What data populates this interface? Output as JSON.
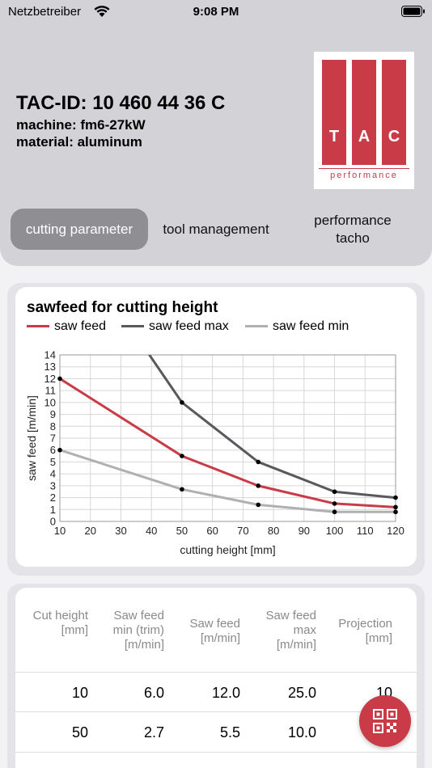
{
  "status_bar": {
    "carrier": "Netzbetreiber",
    "time": "9:08 PM"
  },
  "header": {
    "tac_id": "TAC-ID: 10 460 44 36 C",
    "machine": "machine: fm6-27kW",
    "material": "material: aluminum",
    "logo": {
      "letters": [
        "T",
        "A",
        "C"
      ],
      "tagline": "performance"
    }
  },
  "tabs": [
    {
      "label": "cutting parameter",
      "active": true
    },
    {
      "label": "tool management",
      "active": false
    },
    {
      "label": "performance tacho",
      "active": false
    }
  ],
  "colors": {
    "brand_red": "#c93b46",
    "max_gray": "#58585d",
    "min_gray": "#b0b0b4"
  },
  "chart_data": {
    "type": "line",
    "title": "sawfeed for cutting height",
    "xlabel": "cutting height [mm]",
    "ylabel": "saw feed [m/min]",
    "xlim": [
      10,
      120
    ],
    "ylim": [
      0,
      14
    ],
    "x_ticks": [
      "10",
      "20",
      "30",
      "40",
      "50",
      "60",
      "70",
      "80",
      "90",
      "100",
      "110",
      "120"
    ],
    "y_ticks": [
      "0",
      "1",
      "2",
      "3",
      "4",
      "5",
      "6",
      "7",
      "8",
      "9",
      "10",
      "11",
      "12",
      "13",
      "14"
    ],
    "grid": true,
    "legend_position": "top",
    "series": [
      {
        "name": "saw feed",
        "color": "#c93b46",
        "x": [
          10,
          50,
          75,
          100,
          120
        ],
        "y": [
          12.0,
          5.5,
          3.0,
          1.5,
          1.2
        ]
      },
      {
        "name": "saw feed max",
        "color": "#58585d",
        "x": [
          10,
          50,
          75,
          100,
          120
        ],
        "y": [
          25.0,
          10.0,
          5.0,
          2.5,
          2.0
        ]
      },
      {
        "name": "saw feed min",
        "color": "#b0b0b4",
        "x": [
          10,
          50,
          75,
          100,
          120
        ],
        "y": [
          6.0,
          2.7,
          1.4,
          0.8,
          0.8
        ]
      }
    ]
  },
  "table": {
    "headers": [
      "Cut height [mm]",
      "Saw feed min (trim) [m/min]",
      "Saw feed [m/min]",
      "Saw feed max [m/min]",
      "Projection [mm]"
    ],
    "rows": [
      [
        "10",
        "6.0",
        "12.0",
        "25.0",
        "10"
      ],
      [
        "50",
        "2.7",
        "5.5",
        "10.0",
        ""
      ]
    ]
  }
}
